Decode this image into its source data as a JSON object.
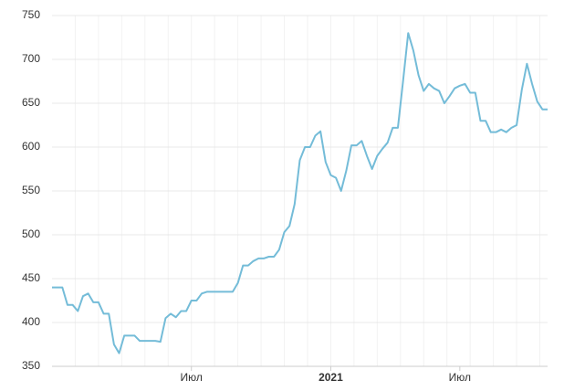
{
  "chart_data": {
    "type": "line",
    "categories": [
      null,
      null,
      null,
      null,
      null,
      null,
      null,
      null,
      null,
      null,
      null,
      null,
      null,
      null,
      null,
      null,
      null,
      null,
      null,
      null,
      null,
      null,
      null,
      null,
      null,
      null,
      null,
      "Июл",
      null,
      null,
      null,
      null,
      null,
      null,
      null,
      null,
      null,
      null,
      null,
      null,
      null,
      null,
      null,
      null,
      null,
      null,
      null,
      null,
      null,
      null,
      null,
      null,
      null,
      null,
      "2021",
      null,
      null,
      null,
      null,
      null,
      null,
      null,
      null,
      null,
      null,
      null,
      null,
      null,
      null,
      null,
      null,
      null,
      null,
      null,
      null,
      null,
      null,
      null,
      null,
      "Июл",
      null,
      null,
      null,
      null,
      null,
      null,
      null,
      null,
      null,
      null,
      null,
      null,
      null,
      null,
      null,
      null,
      null
    ],
    "series": [
      {
        "color": "#74bcd8",
        "values": [
          440,
          440,
          440,
          420,
          420,
          413,
          430,
          433,
          423,
          423,
          410,
          410,
          375,
          365,
          385,
          385,
          385,
          379,
          379,
          379,
          379,
          378,
          405,
          410,
          406,
          413,
          413,
          425,
          425,
          433,
          435,
          435,
          435,
          435,
          435,
          435,
          445,
          465,
          465,
          470,
          473,
          473,
          475,
          475,
          483,
          503,
          510,
          535,
          585,
          600,
          600,
          613,
          618,
          583,
          568,
          565,
          550,
          573,
          602,
          602,
          607,
          590,
          575,
          590,
          598,
          605,
          622,
          622,
          675,
          730,
          710,
          682,
          664,
          672,
          667,
          664,
          650,
          658,
          667,
          670,
          672,
          662,
          662,
          630,
          630,
          617,
          617,
          620,
          617,
          622,
          625,
          665,
          695,
          672,
          652,
          643,
          643
        ]
      }
    ],
    "ylim": [
      350,
      750
    ],
    "yticks": [
      350,
      400,
      450,
      500,
      550,
      600,
      650,
      700,
      750
    ],
    "grid": true
  }
}
